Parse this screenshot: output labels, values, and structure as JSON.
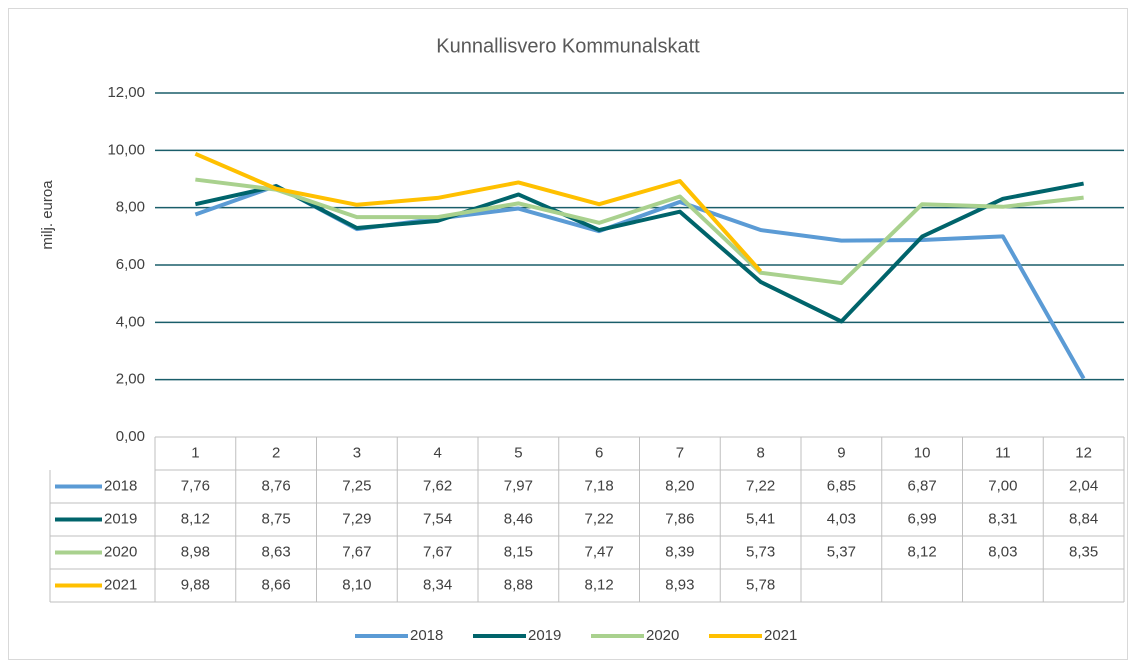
{
  "chart_data": {
    "type": "line",
    "title": "Kunnallisvero Kommunalskatt",
    "y_label": "milj. euroa",
    "categories": [
      "1",
      "2",
      "3",
      "4",
      "5",
      "6",
      "7",
      "8",
      "9",
      "10",
      "11",
      "12"
    ],
    "series": [
      {
        "name": "2018",
        "color": "#5b9bd5",
        "values": [
          7.76,
          8.76,
          7.25,
          7.62,
          7.97,
          7.18,
          8.2,
          7.22,
          6.85,
          6.87,
          7.0,
          2.04
        ],
        "value_labels": [
          "7,76",
          "8,76",
          "7,25",
          "7,62",
          "7,97",
          "7,18",
          "8,20",
          "7,22",
          "6,85",
          "6,87",
          "7,00",
          "2,04"
        ]
      },
      {
        "name": "2019",
        "color": "#00646b",
        "values": [
          8.12,
          8.75,
          7.29,
          7.54,
          8.46,
          7.22,
          7.86,
          5.41,
          4.03,
          6.99,
          8.31,
          8.84
        ],
        "value_labels": [
          "8,12",
          "8,75",
          "7,29",
          "7,54",
          "8,46",
          "7,22",
          "7,86",
          "5,41",
          "4,03",
          "6,99",
          "8,31",
          "8,84"
        ]
      },
      {
        "name": "2020",
        "color": "#a9d18e",
        "values": [
          8.98,
          8.63,
          7.67,
          7.67,
          8.15,
          7.47,
          8.39,
          5.73,
          5.37,
          8.12,
          8.03,
          8.35
        ],
        "value_labels": [
          "8,98",
          "8,63",
          "7,67",
          "7,67",
          "8,15",
          "7,47",
          "8,39",
          "5,73",
          "5,37",
          "8,12",
          "8,03",
          "8,35"
        ]
      },
      {
        "name": "2021",
        "color": "#ffc000",
        "values": [
          9.88,
          8.66,
          8.1,
          8.34,
          8.88,
          8.12,
          8.93,
          5.78,
          null,
          null,
          null,
          null
        ],
        "value_labels": [
          "9,88",
          "8,66",
          "8,10",
          "8,34",
          "8,88",
          "8,12",
          "8,93",
          "5,78",
          null,
          null,
          null,
          null
        ]
      }
    ],
    "ylim": [
      0,
      12
    ],
    "yticks": [
      {
        "value": 0,
        "label": "0,00"
      },
      {
        "value": 2,
        "label": "2,00"
      },
      {
        "value": 4,
        "label": "4,00"
      },
      {
        "value": 6,
        "label": "6,00"
      },
      {
        "value": 8,
        "label": "8,00"
      },
      {
        "value": 10,
        "label": "10,00"
      },
      {
        "value": 12,
        "label": "12,00"
      }
    ],
    "grid": true,
    "legend": "bottom",
    "data_table": true
  }
}
